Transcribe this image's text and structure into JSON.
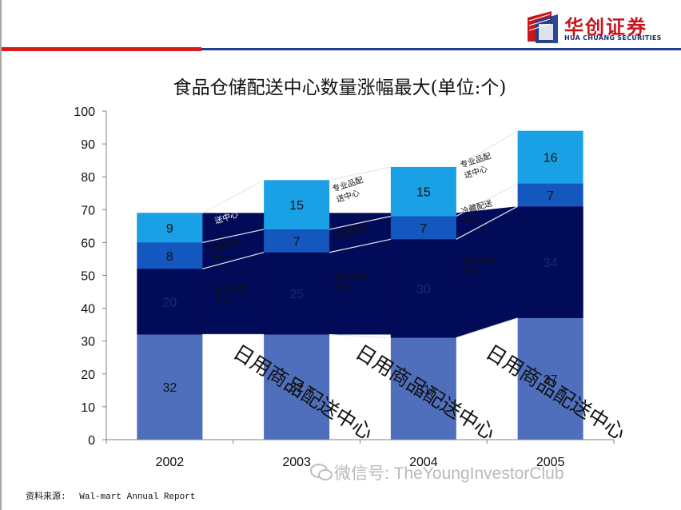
{
  "header": {
    "brand_cn": "华创证券",
    "brand_en": "HUA CHUANG SECURITIES",
    "brand_color": "#c8161d",
    "accent_blue": "#1f3f8c"
  },
  "footer": {
    "source_label": "资料来源:",
    "source_text": "Wal-mart  Annual Report",
    "watermark": "微信号: TheYoungInvestorClub"
  },
  "chart_data": {
    "type": "bar",
    "stacked": true,
    "title": "食品仓储配送中心数量涨幅最大(单位:个)",
    "categories": [
      "2002",
      "2003",
      "2004",
      "2005"
    ],
    "series": [
      {
        "name": "日用商品配送中心",
        "values": [
          32,
          32,
          31,
          37
        ],
        "color": "#4f6fbd",
        "value_labels": [
          "32",
          "32",
          "31",
          "37"
        ]
      },
      {
        "name": "食品配送中心",
        "values": [
          20,
          25,
          30,
          34
        ],
        "color": "#020b57",
        "value_labels": [
          "20",
          "25",
          "30",
          "34"
        ]
      },
      {
        "name": "冷藏配送中心",
        "values": [
          8,
          7,
          7,
          7
        ],
        "color": "#1458bf",
        "value_labels": [
          "8",
          "7",
          "7",
          "7"
        ]
      },
      {
        "name": "专业品配送中心",
        "values": [
          9,
          15,
          15,
          16
        ],
        "color": "#1aa1e5",
        "value_labels": [
          "9",
          "15",
          "15",
          "16"
        ]
      }
    ],
    "ylim": [
      0,
      100
    ],
    "yticks": [
      0,
      10,
      20,
      30,
      40,
      50,
      60,
      70,
      80,
      90,
      100
    ],
    "xlabel": "",
    "ylabel": "",
    "series_labels": {
      "special_a": "专业品配",
      "special_b": "送中心",
      "cold_a": "冷藏配送",
      "cold_b": "中心",
      "food_a": "食品配送",
      "food_b": "中心",
      "daily": "日用商品配送中心"
    }
  }
}
